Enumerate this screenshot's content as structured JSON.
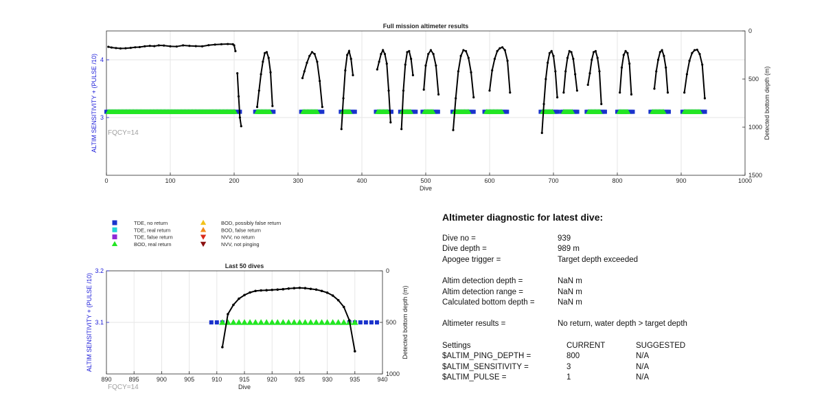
{
  "colors": {
    "axis": "#262626",
    "left_axis": "#1a1ad8",
    "right_axis": "#262626",
    "track": "#000000",
    "tde_no_return": "#1a33cc",
    "tde_real_return": "#22d6d6",
    "tde_false_return": "#8e2ad6",
    "bod_real_return": "#22e622",
    "bod_possibly_false": "#f2c21b",
    "bod_false_return": "#f28c1b",
    "nvv_no_return": "#d92a1a",
    "nvv_not_pinging": "#8a1010",
    "fqcy": "#a0a0a0"
  },
  "legend": {
    "items": [
      {
        "label": "TDE, no return",
        "marker": "square",
        "color": "#1a33cc"
      },
      {
        "label": "TDE, real return",
        "marker": "square",
        "color": "#22d6d6"
      },
      {
        "label": "TDE, false return",
        "marker": "square",
        "color": "#8e2ad6"
      },
      {
        "label": "BOD, real return",
        "marker": "triangle-up",
        "color": "#22e622"
      },
      {
        "label": "BOD, possibly false return",
        "marker": "triangle-up",
        "color": "#f2c21b"
      },
      {
        "label": "BOD, false return",
        "marker": "triangle-up",
        "color": "#f28c1b"
      },
      {
        "label": "NVV, no return",
        "marker": "triangle-down",
        "color": "#d92a1a"
      },
      {
        "label": "NVV, not pinging",
        "marker": "triangle-down",
        "color": "#8a1010"
      }
    ]
  },
  "chart_data": [
    {
      "type": "scatter",
      "title": "Full mission altimeter results",
      "xlabel": "Dive",
      "ylabel_left": "ALTIM SENSITIVITY + (PULSE /10)",
      "ylabel_right": "Detected bottom depth (m)",
      "xlim": [
        0,
        1000
      ],
      "xticks": [
        0,
        100,
        200,
        300,
        400,
        500,
        600,
        700,
        800,
        900,
        1000
      ],
      "ylim_left": [
        2.0,
        4.5
      ],
      "yticks_left": [
        3,
        4
      ],
      "ylim_right_reversed": [
        0,
        1500
      ],
      "yticks_right": [
        0,
        500,
        1000,
        1500
      ],
      "grid": true,
      "annotation": "FQCY=14",
      "series": [
        {
          "marker": "square",
          "color": "#1a33cc",
          "y_left": 3.1,
          "x_ranges": [
            [
              0,
              210
            ],
            [
              233,
              262
            ],
            [
              305,
              338
            ],
            [
              367,
              390
            ],
            [
              422,
              447
            ],
            [
              460,
              485
            ],
            [
              495,
              520
            ],
            [
              542,
              576
            ],
            [
              592,
              628
            ],
            [
              680,
              707
            ],
            [
              713,
              738
            ],
            [
              752,
              782
            ],
            [
              800,
              826
            ],
            [
              852,
              881
            ],
            [
              902,
              938
            ]
          ]
        },
        {
          "marker": "triangle-up",
          "color": "#22e622",
          "y_left": 3.1,
          "x_ranges": [
            [
              3,
              202
            ],
            [
              236,
              257
            ],
            [
              308,
              330
            ],
            [
              370,
              382
            ],
            [
              425,
              441
            ],
            [
              463,
              478
            ],
            [
              498,
              512
            ],
            [
              545,
              568
            ],
            [
              595,
              620
            ],
            [
              683,
              699
            ],
            [
              716,
              731
            ],
            [
              755,
              774
            ],
            [
              803,
              818
            ],
            [
              855,
              873
            ],
            [
              905,
              930
            ]
          ]
        },
        {
          "marker": "line-dot",
          "color": "#000000",
          "axis": "right",
          "dives": [
            {
              "x": [
                3,
                8,
                15,
                22,
                30,
                38,
                45,
                52,
                60,
                68,
                75,
                82,
                90,
                100,
                110,
                120,
                130,
                140,
                150,
                160,
                170,
                180,
                190,
                198,
                200,
                202
              ],
              "y": [
                165,
                172,
                178,
                182,
                180,
                176,
                170,
                168,
                160,
                155,
                158,
                150,
                152,
                160,
                162,
                150,
                155,
                158,
                160,
                148,
                142,
                138,
                136,
                138,
                150,
                210
              ]
            },
            {
              "x": [
                205,
                207,
                209,
                211
              ],
              "y": [
                440,
                680,
                900,
                990
              ]
            },
            {
              "x": [
                236,
                239,
                242,
                245,
                248,
                251,
                254,
                257,
                260
              ],
              "y": [
                790,
                620,
                450,
                320,
                230,
                220,
                280,
                430,
                780
              ]
            },
            {
              "x": [
                307,
                310,
                314,
                318,
                322,
                326,
                330,
                334,
                338
              ],
              "y": [
                490,
                420,
                330,
                260,
                220,
                240,
                320,
                520,
                790
              ]
            },
            {
              "x": [
                368,
                371,
                374,
                377,
                380,
                383,
                386
              ],
              "y": [
                1020,
                700,
                410,
                250,
                210,
                290,
                460
              ]
            },
            {
              "x": [
                424,
                427,
                430,
                433,
                436,
                439,
                442,
                445
              ],
              "y": [
                400,
                320,
                240,
                200,
                240,
                340,
                620,
                950
              ]
            },
            {
              "x": [
                462,
                465,
                468,
                471,
                474,
                477,
                480
              ],
              "y": [
                1020,
                620,
                350,
                220,
                210,
                290,
                460
              ]
            },
            {
              "x": [
                497,
                500,
                504,
                508,
                512,
                516,
                520
              ],
              "y": [
                610,
                360,
                240,
                200,
                240,
                360,
                660
              ]
            },
            {
              "x": [
                543,
                547,
                551,
                555,
                559,
                563,
                567,
                571,
                575
              ],
              "y": [
                1030,
                700,
                420,
                260,
                200,
                210,
                280,
                430,
                690
              ]
            },
            {
              "x": [
                600,
                604,
                608,
                612,
                616,
                620,
                624,
                628,
                632
              ],
              "y": [
                620,
                410,
                290,
                210,
                180,
                170,
                200,
                310,
                640
              ]
            },
            {
              "x": [
                682,
                685,
                688,
                691,
                694,
                697,
                700,
                703,
                706
              ],
              "y": [
                1060,
                760,
                500,
                330,
                230,
                210,
                260,
                420,
                690
              ]
            },
            {
              "x": [
                716,
                719,
                722,
                725,
                728,
                731,
                734,
                737
              ],
              "y": [
                640,
                420,
                280,
                210,
                220,
                290,
                450,
                620
              ]
            },
            {
              "x": [
                754,
                757,
                760,
                763,
                766,
                769,
                772,
                775
              ],
              "y": [
                560,
                440,
                300,
                220,
                210,
                280,
                420,
                760
              ]
            },
            {
              "x": [
                804,
                807,
                810,
                813,
                816,
                819,
                822
              ],
              "y": [
                640,
                380,
                250,
                210,
                230,
                340,
                660
              ]
            },
            {
              "x": [
                858,
                861,
                864,
                867,
                870,
                873,
                876,
                879
              ],
              "y": [
                600,
                420,
                300,
                220,
                200,
                260,
                380,
                640
              ]
            },
            {
              "x": [
                905,
                909,
                913,
                917,
                921,
                925,
                929,
                933,
                937
              ],
              "y": [
                640,
                450,
                310,
                230,
                200,
                195,
                240,
                350,
                700
              ]
            }
          ]
        }
      ]
    },
    {
      "type": "scatter",
      "title": "Last 50 dives",
      "xlabel": "Dive",
      "ylabel_left": "ALTIM SENSITIVITY + (PULSE /10)",
      "ylabel_right": "Detected bottom depth (m)",
      "xlim": [
        890,
        940
      ],
      "xticks": [
        890,
        895,
        900,
        905,
        910,
        915,
        920,
        925,
        930,
        935,
        940
      ],
      "ylim_left": [
        3.0,
        3.2
      ],
      "yticks_left": [
        3.1,
        3.2
      ],
      "ylim_right_reversed": [
        0,
        1000
      ],
      "yticks_right": [
        0,
        500,
        1000
      ],
      "grid": true,
      "annotation": "FQCY=14",
      "series": [
        {
          "marker": "square",
          "color": "#1a33cc",
          "y_left": 3.1,
          "x": [
            909,
            910,
            911,
            934,
            935,
            936,
            937,
            938,
            939
          ]
        },
        {
          "marker": "triangle-up",
          "color": "#22e622",
          "y_left": 3.1,
          "x": [
            911,
            912,
            913,
            914,
            915,
            916,
            917,
            918,
            919,
            920,
            921,
            922,
            923,
            924,
            925,
            926,
            927,
            928,
            929,
            930,
            931,
            932,
            933,
            934,
            935
          ]
        },
        {
          "marker": "line-dot",
          "color": "#000000",
          "axis": "right",
          "x": [
            911,
            912,
            913,
            914,
            915,
            916,
            917,
            918,
            919,
            920,
            921,
            922,
            923,
            924,
            925,
            926,
            927,
            928,
            929,
            930,
            931,
            932,
            933,
            934,
            935
          ],
          "y": [
            740,
            420,
            330,
            270,
            235,
            210,
            195,
            190,
            188,
            185,
            182,
            178,
            172,
            168,
            165,
            168,
            175,
            182,
            195,
            212,
            240,
            285,
            350,
            480,
            780
          ]
        }
      ]
    }
  ],
  "diagnostic": {
    "title": "Altimeter diagnostic for latest dive:",
    "rows": [
      {
        "label": "Dive no =",
        "value": "939"
      },
      {
        "label": "Dive depth =",
        "value": "989 m"
      },
      {
        "label": "Apogee trigger =",
        "value": "Target depth exceeded"
      },
      {
        "label": "Altim detection depth =",
        "value": "NaN m"
      },
      {
        "label": "Altim detection range =",
        "value": "NaN m"
      },
      {
        "label": "Calculated bottom depth =",
        "value": "NaN m"
      },
      {
        "label": "Altimeter results =",
        "value": "No return, water depth > target depth"
      }
    ],
    "settings": {
      "header": {
        "label": "Settings",
        "current": "CURRENT",
        "suggested": "SUGGESTED"
      },
      "rows": [
        {
          "label": "$ALTIM_PING_DEPTH =",
          "current": "800",
          "suggested": "N/A"
        },
        {
          "label": "$ALTIM_SENSITIVITY =",
          "current": "3",
          "suggested": "N/A"
        },
        {
          "label": "$ALTIM_PULSE =",
          "current": "1",
          "suggested": "N/A"
        }
      ]
    }
  }
}
